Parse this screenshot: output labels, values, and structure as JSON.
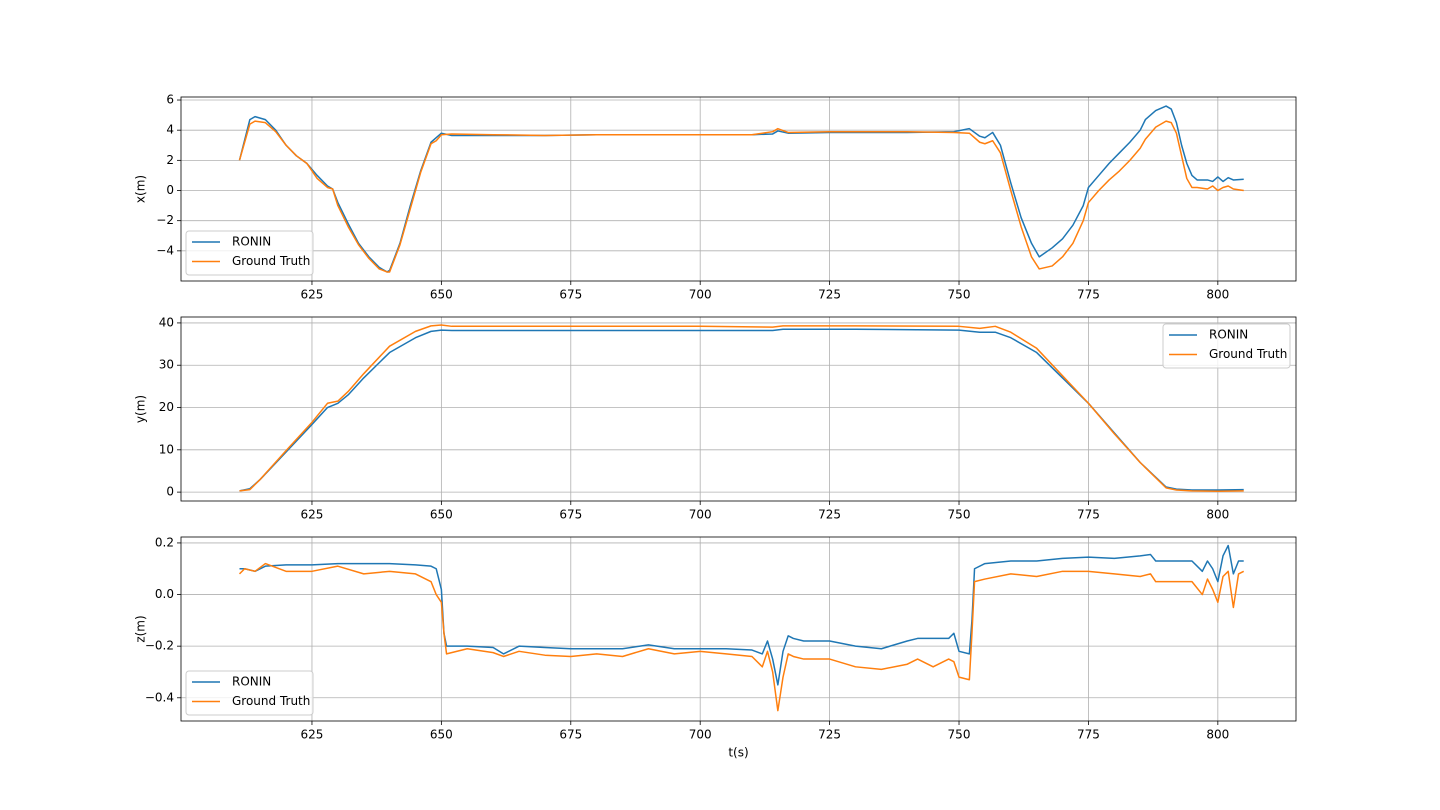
{
  "chart_data": [
    {
      "type": "line",
      "ylabel": "x(m)",
      "xlim": [
        599.7,
        815.1
      ],
      "ylim": [
        -6.0,
        6.2
      ],
      "xticks": [
        625,
        650,
        675,
        700,
        725,
        750,
        775,
        800
      ],
      "yticks": [
        {
          "value": -4,
          "label": "−4"
        },
        {
          "value": -2,
          "label": "−2"
        },
        0,
        2,
        4,
        6
      ],
      "grid": true,
      "legend": "lower left",
      "x": [
        611,
        613,
        614,
        616,
        618,
        620,
        622,
        624,
        626,
        628,
        629,
        630,
        632,
        634,
        636,
        638,
        639.5,
        640,
        642,
        644,
        646,
        648,
        649,
        650,
        652,
        660,
        670,
        680,
        690,
        700,
        710,
        714,
        715,
        717,
        725,
        740,
        749,
        752,
        754,
        755,
        756.5,
        758,
        760,
        762,
        764,
        765.5,
        768,
        770,
        772,
        774,
        775,
        777,
        779,
        781,
        783,
        785,
        786,
        788,
        790,
        791,
        792,
        793,
        794,
        795,
        796,
        798,
        799,
        800,
        801,
        802,
        803,
        805
      ],
      "series": [
        {
          "name": "RONIN",
          "color": "#1f77b4",
          "values": [
            2.0,
            4.7,
            4.9,
            4.7,
            4.0,
            3.0,
            2.3,
            1.8,
            1.0,
            0.3,
            0.1,
            -0.8,
            -2.2,
            -3.5,
            -4.4,
            -5.1,
            -5.4,
            -5.3,
            -3.5,
            -1.0,
            1.3,
            3.2,
            3.5,
            3.8,
            3.65,
            3.65,
            3.65,
            3.7,
            3.7,
            3.7,
            3.7,
            3.75,
            3.95,
            3.8,
            3.85,
            3.85,
            3.9,
            4.1,
            3.6,
            3.5,
            3.85,
            3.0,
            0.5,
            -1.8,
            -3.5,
            -4.4,
            -3.8,
            -3.2,
            -2.3,
            -1.0,
            0.2,
            1.0,
            1.8,
            2.5,
            3.2,
            4.0,
            4.7,
            5.3,
            5.6,
            5.4,
            4.5,
            3.0,
            1.8,
            1.0,
            0.7,
            0.7,
            0.6,
            0.9,
            0.6,
            0.85,
            0.7,
            0.75
          ]
        },
        {
          "name": "Ground Truth",
          "color": "#ff7f0e",
          "values": [
            2.0,
            4.4,
            4.6,
            4.5,
            3.9,
            3.0,
            2.3,
            1.8,
            0.8,
            0.2,
            0.1,
            -1.0,
            -2.4,
            -3.6,
            -4.5,
            -5.2,
            -5.4,
            -5.4,
            -3.6,
            -1.2,
            1.2,
            3.1,
            3.3,
            3.7,
            3.75,
            3.7,
            3.65,
            3.7,
            3.7,
            3.7,
            3.7,
            3.9,
            4.1,
            3.85,
            3.9,
            3.9,
            3.85,
            3.8,
            3.2,
            3.1,
            3.3,
            2.5,
            0,
            -2.4,
            -4.4,
            -5.2,
            -5.0,
            -4.4,
            -3.5,
            -2.0,
            -0.8,
            0,
            0.7,
            1.3,
            2.0,
            2.8,
            3.4,
            4.2,
            4.6,
            4.5,
            3.8,
            2.3,
            0.8,
            0.2,
            0.2,
            0.1,
            0.3,
            0.0,
            0.2,
            0.3,
            0.1,
            0.0
          ]
        }
      ]
    },
    {
      "type": "line",
      "ylabel": "y(m)",
      "xlim": [
        599.7,
        815.1
      ],
      "ylim": [
        -2.1,
        41.4
      ],
      "xticks": [
        625,
        650,
        675,
        700,
        725,
        750,
        775,
        800
      ],
      "yticks": [
        0,
        10,
        20,
        30,
        40
      ],
      "grid": true,
      "legend": "upper right",
      "x": [
        611,
        613,
        615,
        620,
        625,
        628,
        630,
        632,
        635,
        640,
        645,
        648,
        650,
        652,
        660,
        700,
        714,
        716,
        730,
        750,
        754,
        757,
        760,
        765,
        770,
        775,
        780,
        785,
        790,
        792,
        795,
        800,
        805
      ],
      "series": [
        {
          "name": "RONIN",
          "color": "#1f77b4",
          "values": [
            0.3,
            0.8,
            3,
            9.5,
            16,
            20,
            21,
            23,
            27,
            33,
            36.5,
            38,
            38.3,
            38.2,
            38.2,
            38.2,
            38.2,
            38.5,
            38.5,
            38.3,
            37.8,
            37.8,
            36.5,
            33,
            27,
            21,
            14,
            7,
            1.2,
            0.7,
            0.5,
            0.5,
            0.6
          ]
        },
        {
          "name": "Ground Truth",
          "color": "#ff7f0e",
          "values": [
            0.3,
            0.6,
            3,
            9.8,
            16.5,
            21,
            21.5,
            23.8,
            28,
            34.5,
            38,
            39.3,
            39.5,
            39.2,
            39.2,
            39.2,
            39.0,
            39.3,
            39.3,
            39.2,
            38.7,
            39.2,
            37.8,
            34,
            27.5,
            21,
            13.8,
            7,
            1,
            0.5,
            0.3,
            0.2,
            0.3
          ]
        }
      ]
    },
    {
      "type": "line",
      "xlabel": "t(s)",
      "ylabel": "z(m)",
      "xlim": [
        599.7,
        815.1
      ],
      "ylim": [
        -0.49,
        0.223
      ],
      "xticks": [
        625,
        650,
        675,
        700,
        725,
        750,
        775,
        800
      ],
      "yticks": [
        {
          "value": -0.4,
          "label": "−0.4"
        },
        {
          "value": -0.2,
          "label": "−0.2"
        },
        {
          "value": 0,
          "label": "0.0"
        },
        0.2
      ],
      "grid": true,
      "legend": "lower left",
      "x": [
        611,
        612,
        614,
        616,
        620,
        625,
        630,
        635,
        640,
        645,
        648,
        649,
        650,
        650.5,
        651,
        655,
        660,
        662,
        665,
        670,
        675,
        680,
        685,
        690,
        695,
        700,
        705,
        710,
        712,
        713,
        714,
        715,
        716,
        717,
        718,
        720,
        725,
        730,
        735,
        740,
        742,
        745,
        748,
        749,
        750,
        752,
        752.5,
        753,
        755,
        760,
        765,
        770,
        775,
        780,
        785,
        787,
        788,
        795,
        797,
        798,
        799,
        800,
        801,
        802,
        803,
        804,
        805
      ],
      "series": [
        {
          "name": "RONIN",
          "color": "#1f77b4",
          "values": [
            0.1,
            0.1,
            0.09,
            0.11,
            0.115,
            0.115,
            0.12,
            0.12,
            0.12,
            0.115,
            0.11,
            0.1,
            0.02,
            -0.15,
            -0.2,
            -0.2,
            -0.205,
            -0.23,
            -0.2,
            -0.205,
            -0.21,
            -0.21,
            -0.21,
            -0.195,
            -0.21,
            -0.21,
            -0.21,
            -0.215,
            -0.23,
            -0.18,
            -0.25,
            -0.35,
            -0.22,
            -0.16,
            -0.17,
            -0.18,
            -0.18,
            -0.2,
            -0.21,
            -0.18,
            -0.17,
            -0.17,
            -0.17,
            -0.15,
            -0.22,
            -0.23,
            -0.1,
            0.1,
            0.12,
            0.13,
            0.13,
            0.14,
            0.145,
            0.14,
            0.15,
            0.155,
            0.13,
            0.13,
            0.09,
            0.13,
            0.1,
            0.05,
            0.15,
            0.19,
            0.08,
            0.13,
            0.13
          ]
        },
        {
          "name": "Ground Truth",
          "color": "#ff7f0e",
          "values": [
            0.08,
            0.1,
            0.09,
            0.12,
            0.09,
            0.09,
            0.11,
            0.08,
            0.09,
            0.08,
            0.05,
            0.0,
            -0.03,
            -0.15,
            -0.23,
            -0.21,
            -0.225,
            -0.24,
            -0.22,
            -0.235,
            -0.24,
            -0.23,
            -0.24,
            -0.21,
            -0.23,
            -0.22,
            -0.23,
            -0.24,
            -0.28,
            -0.22,
            -0.3,
            -0.45,
            -0.32,
            -0.23,
            -0.24,
            -0.25,
            -0.25,
            -0.28,
            -0.29,
            -0.27,
            -0.25,
            -0.28,
            -0.25,
            -0.26,
            -0.32,
            -0.33,
            -0.15,
            0.05,
            0.06,
            0.08,
            0.07,
            0.09,
            0.09,
            0.08,
            0.07,
            0.08,
            0.05,
            0.05,
            0.0,
            0.06,
            0.02,
            -0.03,
            0.07,
            0.09,
            -0.05,
            0.08,
            0.09
          ]
        }
      ]
    }
  ]
}
